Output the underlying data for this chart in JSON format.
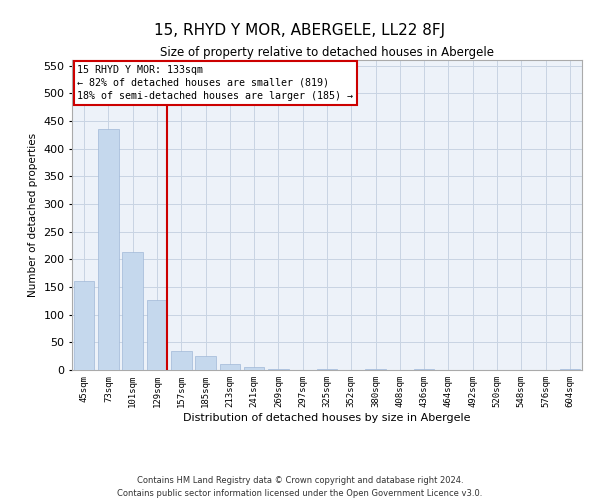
{
  "title": "15, RHYD Y MOR, ABERGELE, LL22 8FJ",
  "subtitle": "Size of property relative to detached houses in Abergele",
  "xlabel": "Distribution of detached houses by size in Abergele",
  "ylabel": "Number of detached properties",
  "categories": [
    "45sqm",
    "73sqm",
    "101sqm",
    "129sqm",
    "157sqm",
    "185sqm",
    "213sqm",
    "241sqm",
    "269sqm",
    "297sqm",
    "325sqm",
    "352sqm",
    "380sqm",
    "408sqm",
    "436sqm",
    "464sqm",
    "492sqm",
    "520sqm",
    "548sqm",
    "576sqm",
    "604sqm"
  ],
  "values": [
    160,
    435,
    213,
    127,
    35,
    25,
    10,
    5,
    2,
    0,
    2,
    0,
    2,
    0,
    2,
    0,
    0,
    0,
    0,
    0,
    2
  ],
  "bar_color": "#c5d8ed",
  "bar_edge_color": "#a0b8d8",
  "grid_color": "#c8d4e3",
  "background_color": "#edf2f9",
  "vline_color": "#cc0000",
  "annotation_text": "15 RHYD Y MOR: 133sqm\n← 82% of detached houses are smaller (819)\n18% of semi-detached houses are larger (185) →",
  "annotation_box_color": "#cc0000",
  "ylim": [
    0,
    560
  ],
  "yticks": [
    0,
    50,
    100,
    150,
    200,
    250,
    300,
    350,
    400,
    450,
    500,
    550
  ],
  "footer_line1": "Contains HM Land Registry data © Crown copyright and database right 2024.",
  "footer_line2": "Contains public sector information licensed under the Open Government Licence v3.0."
}
